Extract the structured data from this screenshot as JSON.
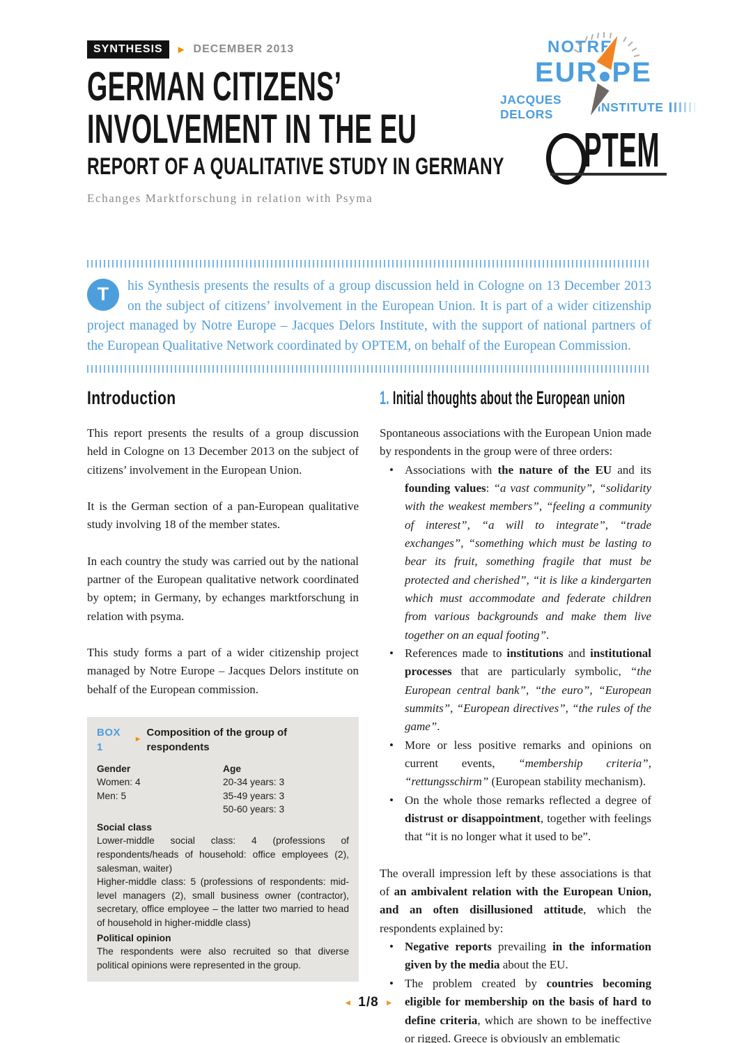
{
  "colors": {
    "blue": "#4d9edd",
    "orange": "#ef8e00",
    "box_background": "#e6e4e1",
    "body_text": "#1d1d1b",
    "gray": "#8b8b8b"
  },
  "header": {
    "kicker": "SYNTHESIS",
    "date": "DECEMBER 2013",
    "title_line1": "GERMAN CITIZENS’",
    "title_line2": "INVOLVEMENT IN THE EU",
    "subtitle": "REPORT OF A QUALITATIVE STUDY IN GERMANY",
    "byline": "Echanges Marktforschung in relation with Psyma"
  },
  "logos": {
    "notre_europe": {
      "top": "NOTRE",
      "mid_left": "EUR",
      "mid_right": "PE",
      "bottom_left": "JACQUES DELORS",
      "bottom_right": "INSTITUTE"
    },
    "optem": {
      "name": "OPTEM",
      "rest": "PTEM"
    }
  },
  "lede": {
    "dropcap": "T",
    "text": "his Synthesis presents the results of a group discussion held in Cologne on 13 December 2013 on the subject of citizens’ involvement in the European Union. It is part of a wider citizenship project managed by Notre Europe – Jacques Delors Institute, with the support of national partners of the European Qualitative Network coordinated by OPTEM, on behalf of the European Commission."
  },
  "left_column": {
    "heading": "Introduction",
    "paragraphs": [
      "This report presents the results of a group discussion held in Cologne on 13 December 2013 on the subject of citizens’ involvement in the European Union.",
      "It is the German section of a pan-European qualitative study involving 18 of the member states.",
      "In each country the study was carried out by the national partner of the European qualitative network coordinated by optem; in Germany, by echanges marktforschung in relation with psyma.",
      "This study forms a part of a wider citizenship project managed by Notre Europe – Jacques Delors institute on behalf of the European commission."
    ]
  },
  "box": {
    "label": "BOX 1",
    "title": "Composition of the group of respondents",
    "gender_heading": "Gender",
    "gender_lines": [
      "Women: 4",
      "Men: 5"
    ],
    "age_heading": "Age",
    "age_lines": [
      "20-34 years: 3",
      "35-49 years: 3",
      "50-60 years: 3"
    ],
    "social_heading": "Social class",
    "social_lines": [
      "Lower-middle social class: 4 (professions of respondents/heads of household: office employees (2), salesman, waiter)",
      "Higher-middle class: 5 (professions of respondents: mid-level managers (2), small business owner (contractor), secretary, office employee – the latter two married to head of household in higher-middle class)"
    ],
    "political_heading": "Political opinion",
    "political_text": "The respondents were also recruited so that diverse political opinions were represented in the group."
  },
  "right_column": {
    "heading_number": "1.",
    "heading_text": "Initial thoughts about the European union",
    "intro_para": "Spontaneous associations with the European Union made by respondents in the group were of three orders:",
    "bullets": [
      [
        {
          "t": "Associations with "
        },
        {
          "b": 1,
          "t": "the nature of the EU"
        },
        {
          "t": " and its "
        },
        {
          "b": 1,
          "t": "founding values"
        },
        {
          "t": ": "
        },
        {
          "i": 1,
          "t": "“a vast community”, “solidarity with the weakest members”, “feeling a community of interest”, “a will to integrate”, “trade exchanges”, “something which must be lasting to bear its fruit, something fragile that must be protected and cherished”, “it is like a kindergarten which must accommodate and federate children from various backgrounds and make them live together on an equal footing”"
        },
        {
          "t": "."
        }
      ],
      [
        {
          "t": "References made to "
        },
        {
          "b": 1,
          "t": "institutions"
        },
        {
          "t": " and "
        },
        {
          "b": 1,
          "t": "institutional processes"
        },
        {
          "t": " that are particularly symbolic, "
        },
        {
          "i": 1,
          "t": "“the European central bank”, “the euro”, “European summits”, “European directives”, “the rules of the game”"
        },
        {
          "t": "."
        }
      ],
      [
        {
          "t": "More or less positive remarks and opinions on current events, "
        },
        {
          "i": 1,
          "t": "“membership criteria”, “rettungsschirm”"
        },
        {
          "t": " (European stability mechanism)."
        }
      ],
      [
        {
          "t": "On the whole those remarks reflected a degree of "
        },
        {
          "b": 1,
          "t": "distrust or disappointment"
        },
        {
          "t": ", together with feelings that “it is no longer what it used to be”."
        }
      ]
    ],
    "para2": [
      {
        "t": "The overall impression left by these associations is that of "
      },
      {
        "b": 1,
        "t": "an ambivalent relation with the European Union, and an often disillusioned attitude"
      },
      {
        "t": ", which the respondents explained by:"
      }
    ],
    "bullets2": [
      [
        {
          "b": 1,
          "t": "Negative reports"
        },
        {
          "t": " prevailing "
        },
        {
          "b": 1,
          "t": "in the information given by the media"
        },
        {
          "t": " about the EU."
        }
      ],
      [
        {
          "t": "The problem created by "
        },
        {
          "b": 1,
          "t": "countries becoming eligible for membership on the basis of hard to define criteria"
        },
        {
          "t": ", which are shown to be ineffective or rigged. Greece is obviously an emblematic"
        }
      ]
    ]
  },
  "footer": {
    "page": "1/8",
    "prev_arrow": "◄",
    "next_arrow": "►"
  }
}
